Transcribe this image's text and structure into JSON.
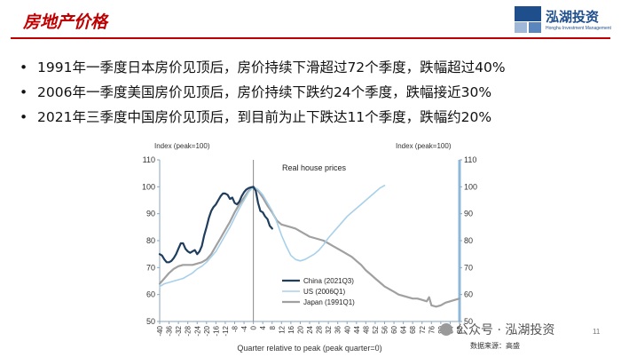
{
  "slide": {
    "title": "房地产价格",
    "page_number": "11"
  },
  "logo": {
    "name": "泓湖投资",
    "subtitle": "Honghu Investment Management"
  },
  "bullets": [
    "1991年一季度日本房价见顶后，房价持续下滑超过72个季度，跌幅超过40%",
    "2006年一季度美国房价见顶后，房价持续下跌约24个季度，跌幅接近30%",
    "2021年三季度中国房价见顶后，到目前为止下跌达11个季度，跌幅约20%"
  ],
  "bullet_symbol": "•",
  "watermark": "公众号 · 泓湖投资",
  "source": "数据来源：高盛",
  "colors": {
    "title": "#c00000",
    "china": "#1f3e5e",
    "us": "#a8d0ea",
    "japan": "#a0a0a0",
    "axis_right": "#8fb8d8"
  },
  "chart_data": {
    "type": "line",
    "title": "Real house prices",
    "xlabel": "Quarter relative to peak (peak quarter=0)",
    "ylabel_left": "Index (peak=100)",
    "ylabel_right": "Index (peak=100)",
    "xlim": [
      -40,
      88
    ],
    "ylim": [
      50,
      110
    ],
    "y_ticks": [
      "50",
      "60",
      "70",
      "80",
      "90",
      "100",
      "110"
    ],
    "x_ticks": [
      "-40",
      "-36",
      "-32",
      "-28",
      "-24",
      "-20",
      "-16",
      "-12",
      "-8",
      "-4",
      "0",
      "4",
      "8",
      "12",
      "16",
      "20",
      "24",
      "28",
      "32",
      "36",
      "40",
      "44",
      "48",
      "52",
      "56",
      "60",
      "64",
      "68",
      "72",
      "76",
      "80",
      "84",
      "88"
    ],
    "peak_line_x": 0,
    "legend": {
      "position": "bottom-center",
      "entries": [
        "China (2021Q3)",
        "US (2006Q1)",
        "Japan (1991Q1)"
      ]
    },
    "series": [
      {
        "name": "China (2021Q3)",
        "color": "#1f3e5e",
        "width": 2.2,
        "points": [
          [
            -40,
            75
          ],
          [
            -39,
            74.5
          ],
          [
            -38,
            73
          ],
          [
            -37,
            72
          ],
          [
            -36,
            72
          ],
          [
            -35,
            72.5
          ],
          [
            -34,
            73.5
          ],
          [
            -33,
            75
          ],
          [
            -32,
            77
          ],
          [
            -31,
            79
          ],
          [
            -30,
            79
          ],
          [
            -29,
            77
          ],
          [
            -28,
            76
          ],
          [
            -27,
            75.5
          ],
          [
            -26,
            76
          ],
          [
            -25,
            76.5
          ],
          [
            -24,
            75
          ],
          [
            -23,
            76
          ],
          [
            -22,
            78
          ],
          [
            -21,
            82
          ],
          [
            -20,
            85
          ],
          [
            -19,
            88.5
          ],
          [
            -18,
            91
          ],
          [
            -17,
            92.5
          ],
          [
            -16,
            93.5
          ],
          [
            -15,
            95
          ],
          [
            -14,
            96.5
          ],
          [
            -13,
            97.5
          ],
          [
            -12,
            97.5
          ],
          [
            -11,
            97
          ],
          [
            -10,
            95.5
          ],
          [
            -9,
            96
          ],
          [
            -8,
            94
          ],
          [
            -7,
            93.5
          ],
          [
            -6,
            94.5
          ],
          [
            -5,
            96.5
          ],
          [
            -4,
            98
          ],
          [
            -3,
            99
          ],
          [
            -2,
            99.5
          ],
          [
            -1,
            99.8
          ],
          [
            0,
            100
          ],
          [
            1,
            98.5
          ],
          [
            2,
            94
          ],
          [
            3,
            91
          ],
          [
            4,
            90.5
          ],
          [
            5,
            89
          ],
          [
            6,
            88
          ],
          [
            7,
            85.5
          ],
          [
            8,
            84.5
          ]
        ]
      },
      {
        "name": "US (2006Q1)",
        "color": "#a8d0ea",
        "width": 1.6,
        "points": [
          [
            -40,
            63
          ],
          [
            -38,
            64
          ],
          [
            -36,
            64.5
          ],
          [
            -34,
            65
          ],
          [
            -32,
            65.5
          ],
          [
            -30,
            66
          ],
          [
            -28,
            67
          ],
          [
            -26,
            68
          ],
          [
            -24,
            69.5
          ],
          [
            -22,
            70.5
          ],
          [
            -20,
            72
          ],
          [
            -18,
            74
          ],
          [
            -16,
            76
          ],
          [
            -14,
            79
          ],
          [
            -12,
            82
          ],
          [
            -10,
            85
          ],
          [
            -8,
            88.5
          ],
          [
            -6,
            92
          ],
          [
            -4,
            95
          ],
          [
            -2,
            98
          ],
          [
            0,
            100
          ],
          [
            2,
            99
          ],
          [
            4,
            97
          ],
          [
            6,
            94
          ],
          [
            8,
            91
          ],
          [
            10,
            87
          ],
          [
            12,
            82
          ],
          [
            14,
            78
          ],
          [
            16,
            74.5
          ],
          [
            18,
            73
          ],
          [
            20,
            72.5
          ],
          [
            22,
            73
          ],
          [
            24,
            74
          ],
          [
            26,
            75
          ],
          [
            28,
            76.5
          ],
          [
            30,
            78.5
          ],
          [
            32,
            81
          ],
          [
            34,
            83
          ],
          [
            36,
            85
          ],
          [
            38,
            87
          ],
          [
            40,
            89
          ],
          [
            42,
            90.5
          ],
          [
            44,
            92
          ],
          [
            46,
            93.5
          ],
          [
            48,
            95
          ],
          [
            50,
            96.5
          ],
          [
            52,
            98
          ],
          [
            54,
            99.5
          ],
          [
            56,
            100.5
          ]
        ]
      },
      {
        "name": "Japan (1991Q1)",
        "color": "#a0a0a0",
        "width": 2.2,
        "points": [
          [
            -40,
            64
          ],
          [
            -38,
            66
          ],
          [
            -36,
            68
          ],
          [
            -34,
            69.5
          ],
          [
            -32,
            70.5
          ],
          [
            -30,
            71
          ],
          [
            -28,
            71
          ],
          [
            -26,
            71
          ],
          [
            -24,
            71.5
          ],
          [
            -22,
            72
          ],
          [
            -20,
            73
          ],
          [
            -18,
            75
          ],
          [
            -16,
            78
          ],
          [
            -14,
            81
          ],
          [
            -12,
            84
          ],
          [
            -10,
            87
          ],
          [
            -8,
            90.5
          ],
          [
            -6,
            93.5
          ],
          [
            -4,
            96
          ],
          [
            -2,
            98.5
          ],
          [
            0,
            100
          ],
          [
            2,
            98.5
          ],
          [
            4,
            96
          ],
          [
            6,
            93
          ],
          [
            8,
            90.5
          ],
          [
            10,
            87.5
          ],
          [
            12,
            86
          ],
          [
            14,
            85.5
          ],
          [
            16,
            85
          ],
          [
            18,
            84.5
          ],
          [
            20,
            83.5
          ],
          [
            22,
            82.5
          ],
          [
            24,
            81.5
          ],
          [
            26,
            81
          ],
          [
            28,
            80.5
          ],
          [
            30,
            80
          ],
          [
            32,
            79
          ],
          [
            34,
            78
          ],
          [
            36,
            77
          ],
          [
            38,
            76
          ],
          [
            40,
            75
          ],
          [
            42,
            74
          ],
          [
            44,
            72.5
          ],
          [
            46,
            71
          ],
          [
            48,
            69
          ],
          [
            50,
            67.5
          ],
          [
            52,
            66
          ],
          [
            54,
            64.5
          ],
          [
            56,
            63
          ],
          [
            58,
            62
          ],
          [
            60,
            61
          ],
          [
            62,
            60
          ],
          [
            64,
            59.5
          ],
          [
            66,
            59
          ],
          [
            68,
            58.5
          ],
          [
            70,
            58.5
          ],
          [
            72,
            58
          ],
          [
            74,
            57.5
          ],
          [
            75,
            59
          ],
          [
            76,
            56
          ],
          [
            78,
            55.5
          ],
          [
            80,
            56
          ],
          [
            82,
            57
          ],
          [
            84,
            57.5
          ],
          [
            86,
            58
          ],
          [
            88,
            58.5
          ]
        ]
      }
    ]
  }
}
